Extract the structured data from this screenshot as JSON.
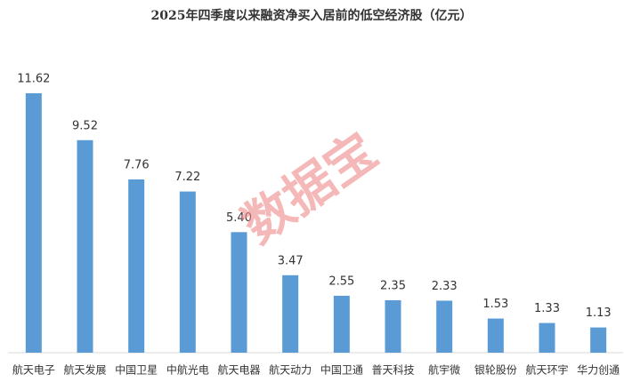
{
  "chart_data": {
    "type": "bar",
    "title": "2025年四季度以来融资净买入居前的低空经济股（亿元）",
    "categories": [
      "航天电子",
      "航天发展",
      "中国卫星",
      "中航光电",
      "航天电器",
      "航天动力",
      "中国卫通",
      "普天科技",
      "航宇微",
      "银轮股份",
      "航天环宇",
      "华力创通"
    ],
    "values": [
      11.62,
      9.52,
      7.76,
      7.22,
      5.4,
      3.47,
      2.55,
      2.35,
      2.33,
      1.53,
      1.33,
      1.13
    ],
    "value_labels": [
      "11.62",
      "9.52",
      "7.76",
      "7.22",
      "5.40",
      "3.47",
      "2.55",
      "2.35",
      "2.33",
      "1.53",
      "1.33",
      "1.13"
    ],
    "color": "#5b9bd5",
    "watermark": "数据宝"
  }
}
